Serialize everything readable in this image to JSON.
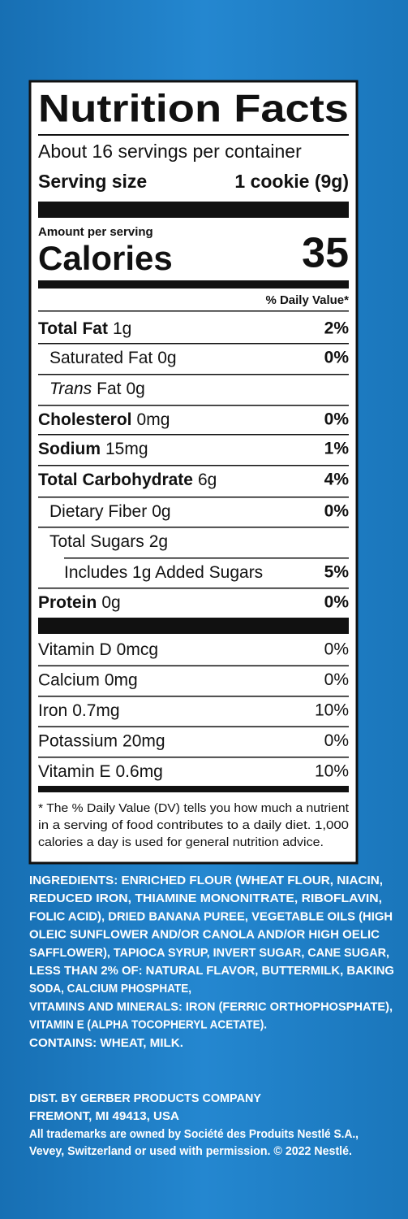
{
  "label": {
    "title": "Nutrition Facts",
    "servings": "About 16 servings per container",
    "serving_size_label": "Serving size",
    "serving_size": "1 cookie (9g)",
    "amount_per_serving": "Amount per serving",
    "calories_label": "Calories",
    "calories": "35",
    "dv_header": "% Daily Value*",
    "nutrients": [
      {
        "name": "Total Fat",
        "amount": "1g",
        "dv": "2%"
      },
      {
        "name": "Saturated Fat",
        "amount": "0g",
        "dv": "0%"
      },
      {
        "name_italic": "Trans",
        "name": "Fat",
        "amount": "0g"
      },
      {
        "name": "Cholesterol",
        "amount": "0mg",
        "dv": "0%"
      },
      {
        "name": "Sodium",
        "amount": "15mg",
        "dv": "1%"
      },
      {
        "name": "Total Carbohydrate",
        "amount": "6g",
        "dv": "4%"
      },
      {
        "name": "Dietary Fiber",
        "amount": "0g",
        "dv": "0%"
      },
      {
        "name": "Total Sugars",
        "amount": "2g"
      },
      {
        "name": "Includes 1g Added Sugars",
        "dv": "5%"
      },
      {
        "name": "Protein",
        "amount": "0g",
        "dv": "0%"
      }
    ],
    "vitamins": [
      {
        "name": "Vitamin D",
        "amount": "0mcg",
        "dv": "0%"
      },
      {
        "name": "Calcium",
        "amount": "0mg",
        "dv": "0%"
      },
      {
        "name": "Iron",
        "amount": "0.7mg",
        "dv": "10%"
      },
      {
        "name": "Potassium",
        "amount": "20mg",
        "dv": "0%"
      },
      {
        "name": "Vitamin E",
        "amount": "0.6mg",
        "dv": "10%"
      }
    ],
    "footnote": [
      "* The % Daily Value (DV) tells you how much a nutrient",
      "in a serving of food contributes to a daily diet. 1,000",
      "calories a day is used for general nutrition advice."
    ]
  },
  "ingredients": [
    "INGREDIENTS: ENRICHED FLOUR (WHEAT FLOUR, NIACIN,",
    "REDUCED IRON, THIAMINE MONONITRATE, RIBOFLAVIN,",
    "FOLIC ACID), DRIED BANANA PUREE, VEGETABLE OILS (HIGH",
    "OLEIC SUNFLOWER AND/OR CANOLA AND/OR HIGH OELIC",
    "SAFFLOWER), TAPIOCA SYRUP, INVERT SUGAR, CANE SUGAR,",
    "LESS THAN 2% OF:  NATURAL FLAVOR, BUTTERMILK, BAKING",
    "SODA, CALCIUM PHOSPHATE,",
    "VITAMINS AND MINERALS: IRON (FERRIC ORTHOPHOSPHATE),",
    "VITAMIN E (ALPHA TOCOPHERYL ACETATE).",
    "CONTAINS: WHEAT, MILK."
  ],
  "distributor": [
    "DIST. BY GERBER PRODUCTS COMPANY",
    "FREMONT, MI 49413, USA"
  ],
  "trademark": [
    "All trademarks are owned by Société des Produits Nestlé S.A.,",
    "Vevey, Switzerland or used with permission. © 2022 Nestlé."
  ]
}
